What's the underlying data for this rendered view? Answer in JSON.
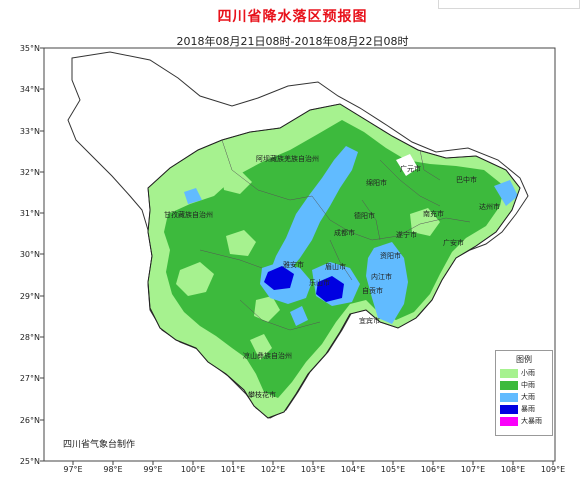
{
  "title": "四川省降水落区预报图",
  "subtitle": "2018年08月21日08时-2018年08月22日08时",
  "maker": "四川省气象台制作",
  "lat_labels": [
    "35°N",
    "34°N",
    "33°N",
    "32°N",
    "31°N",
    "30°N",
    "29°N",
    "28°N",
    "27°N",
    "26°N",
    "25°N"
  ],
  "lon_labels": [
    "97°E",
    "98°E",
    "99°E",
    "100°E",
    "101°E",
    "102°E",
    "103°E",
    "104°E",
    "105°E",
    "106°E",
    "107°E",
    "108°E",
    "109°E"
  ],
  "cities": [
    {
      "name": "阿坝藏族羌族自治州"
    },
    {
      "name": "绵阳市"
    },
    {
      "name": "广元市"
    },
    {
      "name": "巴中市"
    },
    {
      "name": "甘孜藏族自治州"
    },
    {
      "name": "德阳市"
    },
    {
      "name": "南充市"
    },
    {
      "name": "达州市"
    },
    {
      "name": "成都市"
    },
    {
      "name": "遂宁市"
    },
    {
      "name": "广安市"
    },
    {
      "name": "资阳市"
    },
    {
      "name": "雅安市"
    },
    {
      "name": "眉山市"
    },
    {
      "name": "内江市"
    },
    {
      "name": "乐山市"
    },
    {
      "name": "自贡市"
    },
    {
      "name": "宜宾市"
    },
    {
      "name": "凉山彝族自治州"
    },
    {
      "name": "攀枝花市"
    }
  ],
  "legend": {
    "title": "图例",
    "items": [
      {
        "label": "小雨",
        "color": "#a6f28f"
      },
      {
        "label": "中雨",
        "color": "#3dba3d"
      },
      {
        "label": "大雨",
        "color": "#61bbff"
      },
      {
        "label": "暴雨",
        "color": "#0000e1"
      },
      {
        "label": "大暴雨",
        "color": "#fa00fa"
      }
    ]
  },
  "colors": {
    "title": "#e8121b",
    "light": "#a6f28f",
    "moderate": "#3dba3d",
    "heavy": "#61bbff",
    "rainstorm": "#0000e1",
    "extreme": "#fa00fa"
  }
}
